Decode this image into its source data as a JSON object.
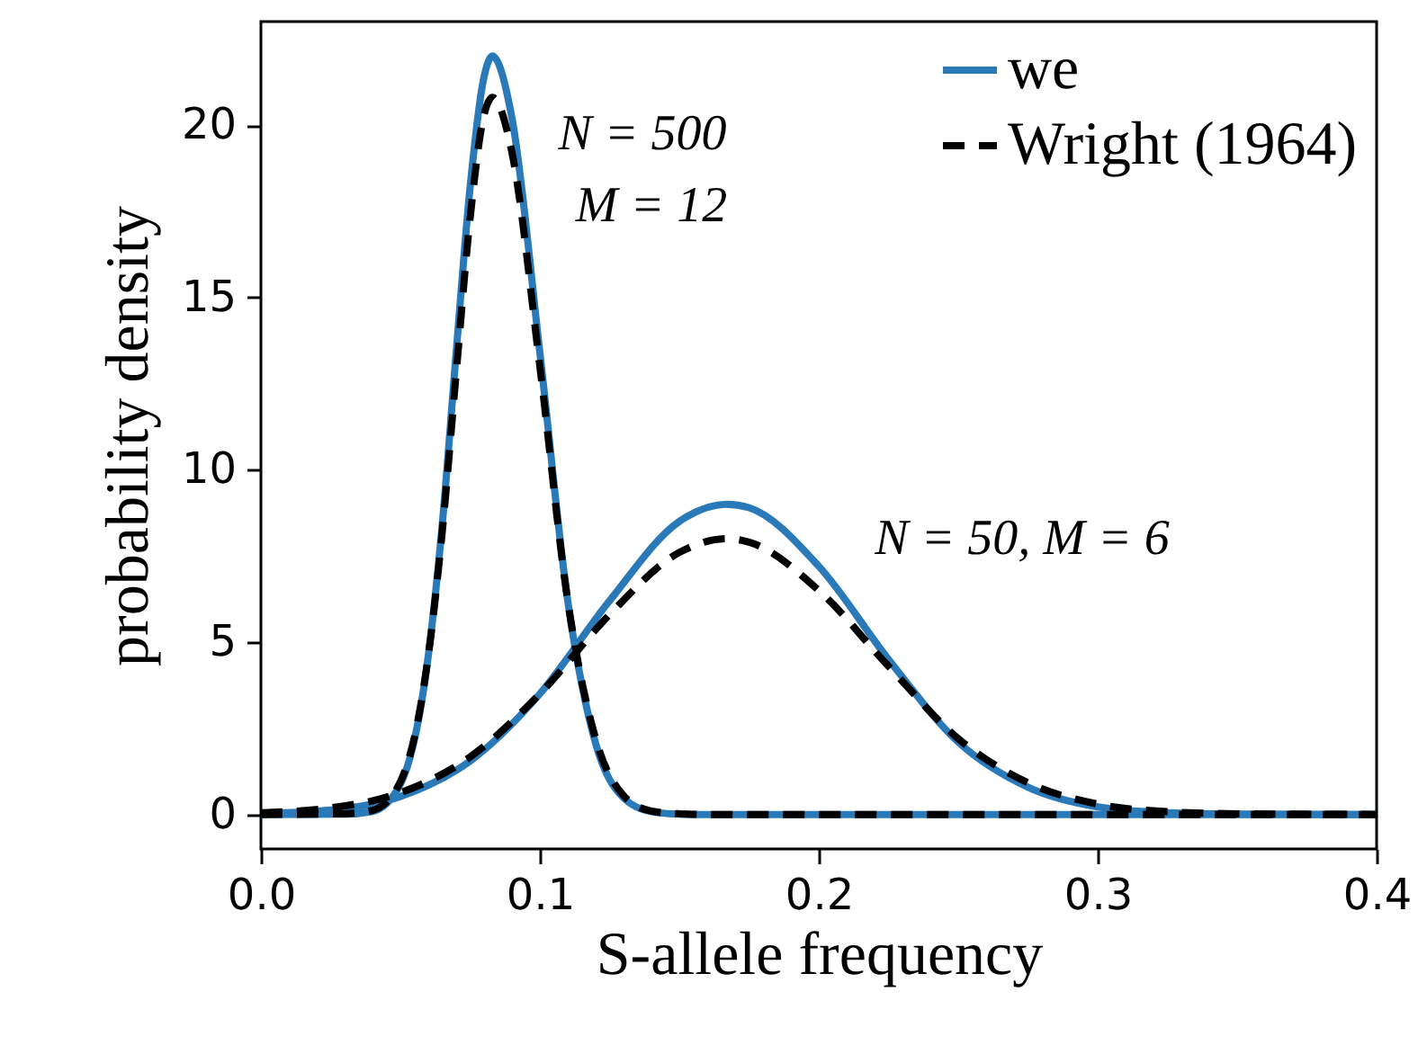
{
  "chart_data": {
    "type": "line",
    "xlabel": "S-allele frequency",
    "ylabel": "probability density",
    "xlim": [
      0,
      0.4
    ],
    "ylim": [
      -1,
      23
    ],
    "xticks": [
      {
        "value": 0,
        "label": "0.0"
      },
      0.1,
      0.2,
      0.3,
      0.4
    ],
    "yticks": [
      0,
      5,
      10,
      15,
      20
    ],
    "grid": false,
    "legend": "top right",
    "marker": "none",
    "series": [
      {
        "name": "we",
        "color": "#2a7ab9",
        "line_style": "solid",
        "x": [
          0,
          0.03,
          0.04,
          0.05,
          0.06,
          0.065,
          0.07,
          0.075,
          0.08,
          0.083,
          0.09,
          0.1,
          0.11,
          0.12,
          0.13,
          0.14,
          0.15,
          0.16,
          0.4
        ],
        "values": [
          0,
          0.01,
          0.09,
          0.88,
          4.6,
          8.4,
          13.4,
          18.2,
          21.4,
          22,
          20.2,
          13.4,
          6.2,
          2.06,
          0.48,
          0.08,
          0.01,
          0,
          0
        ]
      },
      {
        "color": "#2a7ab9",
        "line_style": "solid",
        "x": [
          0,
          0.025,
          0.05,
          0.075,
          0.1,
          0.125,
          0.15,
          0.167,
          0.175,
          0.2,
          0.225,
          0.25,
          0.275,
          0.3,
          0.325,
          0.35,
          0.4
        ],
        "values": [
          0.03,
          0.13,
          0.52,
          1.55,
          3.5,
          6.2,
          8.5,
          9,
          8.9,
          7.2,
          4.5,
          2.1,
          0.79,
          0.22,
          0.05,
          0.01,
          0
        ]
      },
      {
        "name": "Wright (1964)",
        "color": "#000000",
        "line_style": "dashed",
        "x": [
          0,
          0.03,
          0.04,
          0.05,
          0.06,
          0.065,
          0.07,
          0.075,
          0.08,
          0.083,
          0.09,
          0.1,
          0.11,
          0.12,
          0.13,
          0.14,
          0.15,
          0.16,
          0.4
        ],
        "values": [
          0,
          0.02,
          0.12,
          0.95,
          4.6,
          8.2,
          12.8,
          17.3,
          20.3,
          20.8,
          19.2,
          13,
          6.2,
          2.2,
          0.55,
          0.1,
          0.02,
          0,
          0
        ]
      },
      {
        "color": "#000000",
        "line_style": "dashed",
        "x": [
          0,
          0.025,
          0.05,
          0.075,
          0.1,
          0.125,
          0.15,
          0.167,
          0.175,
          0.2,
          0.225,
          0.25,
          0.275,
          0.3,
          0.325,
          0.35,
          0.4
        ],
        "values": [
          0.05,
          0.19,
          0.63,
          1.67,
          3.5,
          5.8,
          7.6,
          8,
          7.9,
          6.5,
          4.3,
          2.2,
          0.92,
          0.3,
          0.08,
          0.02,
          0
        ]
      }
    ],
    "annotations": [
      "N = 500",
      "M = 12",
      "N = 50, M = 6"
    ]
  }
}
